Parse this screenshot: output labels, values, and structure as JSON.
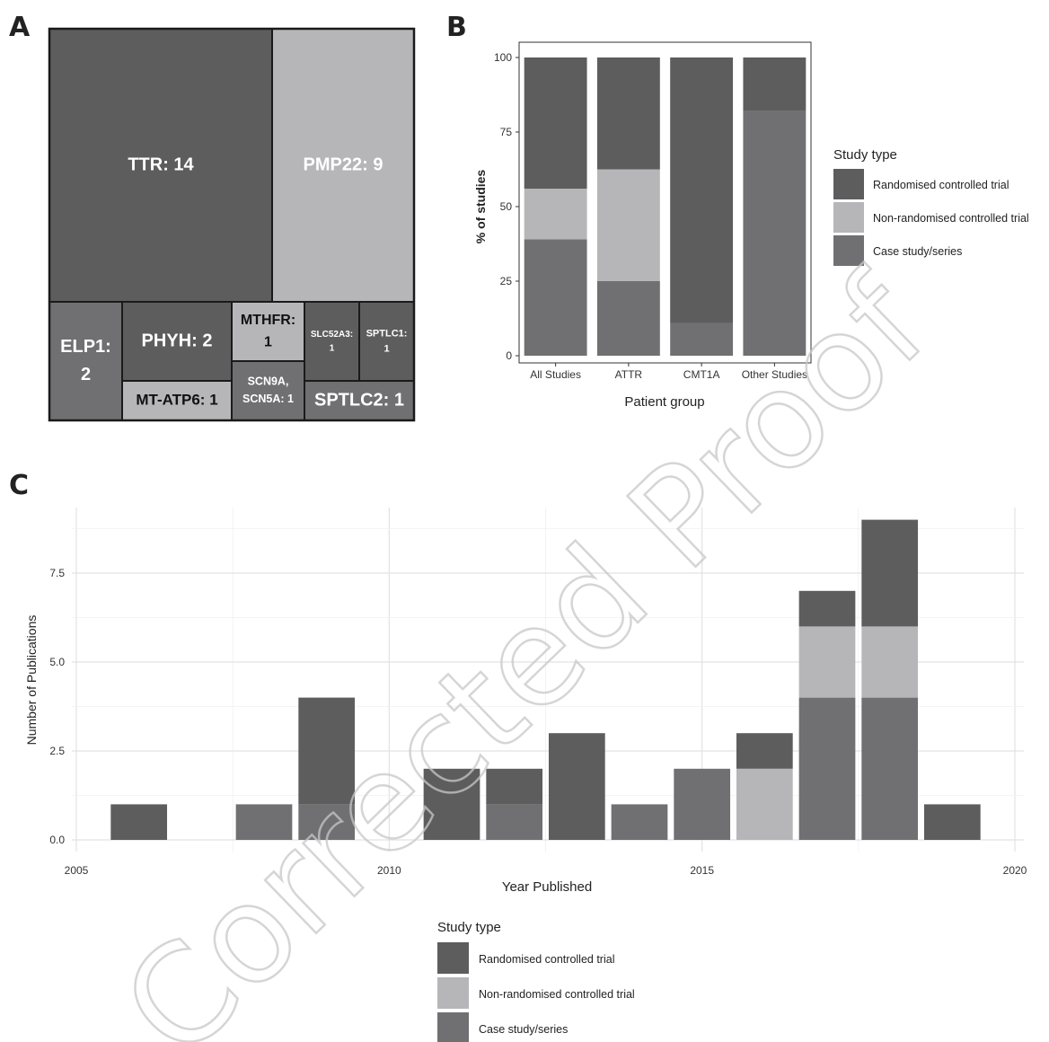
{
  "colors": {
    "rct": "#5d5d5d",
    "nrct": "#b6b6b8",
    "case": "#707073",
    "border": "#1a1a1a",
    "grid": "#e8e8e8"
  },
  "watermark": "Corrected Proof",
  "chart_data": [
    {
      "panel": "A",
      "type": "treemap",
      "tiles": [
        {
          "name": "TTR",
          "value": 14,
          "label": "TTR: 14",
          "color": "rct"
        },
        {
          "name": "PMP22",
          "value": 9,
          "label": "PMP22: 9",
          "color": "nrct"
        },
        {
          "name": "ELP1",
          "value": 2,
          "label_lines": [
            "ELP1:",
            "2"
          ],
          "color": "case"
        },
        {
          "name": "PHYH",
          "value": 2,
          "label": "PHYH: 2",
          "color": "rct"
        },
        {
          "name": "MT-ATP6",
          "value": 1,
          "label": "MT-ATP6: 1",
          "color": "nrct"
        },
        {
          "name": "MTHFR",
          "value": 1,
          "label_lines": [
            "MTHFR:",
            "1"
          ],
          "color": "nrct"
        },
        {
          "name": "SCN9A, SCN5A",
          "value": 1,
          "label_lines": [
            "SCN9A,",
            "SCN5A: 1"
          ],
          "color": "case"
        },
        {
          "name": "SLC52A3",
          "value": 1,
          "label_lines": [
            "SLC52A3:",
            "1"
          ],
          "color": "rct"
        },
        {
          "name": "SPTLC1",
          "value": 1,
          "label_lines": [
            "SPTLC1:",
            "1"
          ],
          "color": "rct"
        },
        {
          "name": "SPTLC2",
          "value": 1,
          "label": "SPTLC2: 1",
          "color": "case"
        }
      ]
    },
    {
      "panel": "B",
      "type": "bar",
      "stacked": true,
      "categories": [
        "All Studies",
        "ATTR",
        "CMT1A",
        "Other Studies"
      ],
      "series": [
        {
          "name": "Case study/series",
          "color": "case",
          "values": [
            39,
            25,
            11,
            82
          ]
        },
        {
          "name": "Non-randomised controlled trial",
          "color": "nrct",
          "values": [
            17,
            37.5,
            0,
            0
          ]
        },
        {
          "name": "Randomised controlled trial",
          "color": "rct",
          "values": [
            44,
            37.5,
            89,
            18
          ]
        }
      ],
      "xlabel": "Patient group",
      "ylabel": "% of studies",
      "ylim": [
        0,
        100
      ],
      "yticks": [
        0,
        25,
        50,
        75,
        100
      ],
      "legend": {
        "title": "Study type",
        "position": "right",
        "items": [
          {
            "label": "Randomised controlled trial",
            "color": "rct"
          },
          {
            "label": "Non-randomised controlled trial",
            "color": "nrct"
          },
          {
            "label": "Case study/series",
            "color": "case"
          }
        ]
      }
    },
    {
      "panel": "C",
      "type": "bar",
      "stacked": true,
      "x": [
        2006,
        2008,
        2009,
        2011,
        2012,
        2013,
        2014,
        2015,
        2016,
        2017,
        2018,
        2019
      ],
      "series": [
        {
          "name": "Case study/series",
          "color": "case",
          "values": [
            0,
            1,
            1,
            0,
            1,
            0,
            1,
            2,
            0,
            4,
            4,
            0
          ]
        },
        {
          "name": "Non-randomised controlled trial",
          "color": "nrct",
          "values": [
            0,
            0,
            0,
            0,
            0,
            0,
            0,
            0,
            2,
            2,
            2,
            0
          ]
        },
        {
          "name": "Randomised controlled trial",
          "color": "rct",
          "values": [
            1,
            0,
            3,
            2,
            1,
            3,
            0,
            0,
            1,
            1,
            3,
            1
          ]
        }
      ],
      "xlabel": "Year Published",
      "ylabel": "Number of Publications",
      "xlim": [
        2005,
        2020
      ],
      "xticks": [
        2005,
        2010,
        2015,
        2020
      ],
      "ylim": [
        0,
        9.5
      ],
      "yticks": [
        0.0,
        2.5,
        5.0,
        7.5
      ],
      "ytick_labels": [
        "0.0",
        "2.5",
        "5.0",
        "7.5"
      ],
      "grid": true,
      "legend": {
        "title": "Study type",
        "position": "bottom",
        "items": [
          {
            "label": "Randomised controlled trial",
            "color": "rct"
          },
          {
            "label": "Non-randomised controlled trial",
            "color": "nrct"
          },
          {
            "label": "Case study/series",
            "color": "case"
          }
        ]
      }
    }
  ]
}
